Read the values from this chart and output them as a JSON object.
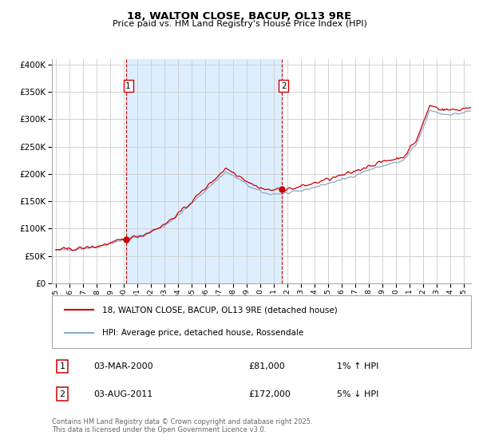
{
  "title": "18, WALTON CLOSE, BACUP, OL13 9RE",
  "subtitle": "Price paid vs. HM Land Registry's House Price Index (HPI)",
  "legend_line1": "18, WALTON CLOSE, BACUP, OL13 9RE (detached house)",
  "legend_line2": "HPI: Average price, detached house, Rossendale",
  "annotation1_label": "1",
  "annotation1_date": "03-MAR-2000",
  "annotation1_price": "£81,000",
  "annotation1_hpi": "1% ↑ HPI",
  "annotation2_label": "2",
  "annotation2_date": "03-AUG-2011",
  "annotation2_price": "£172,000",
  "annotation2_hpi": "5% ↓ HPI",
  "footer": "Contains HM Land Registry data © Crown copyright and database right 2025.\nThis data is licensed under the Open Government Licence v3.0.",
  "line_color_red": "#cc0000",
  "line_color_blue": "#88aacc",
  "shade_color": "#ddeeff",
  "vline_color": "#cc0000",
  "grid_color": "#cccccc",
  "background_color": "#ffffff",
  "ylim": [
    0,
    410000
  ],
  "ytick_vals": [
    0,
    50000,
    100000,
    150000,
    200000,
    250000,
    300000,
    350000,
    400000
  ],
  "transaction1_year": 2000.17,
  "transaction1_value": 81000,
  "transaction2_year": 2011.58,
  "transaction2_value": 172000,
  "start_year": 1995,
  "end_year": 2025.5,
  "anchors_t": [
    1995.0,
    1996.5,
    1998.0,
    2000.0,
    2001.5,
    2003.0,
    2004.5,
    2006.0,
    2007.5,
    2008.5,
    2009.5,
    2010.5,
    2011.5,
    2012.5,
    2013.5,
    2015.0,
    2016.5,
    2018.0,
    2019.5,
    2020.5,
    2021.5,
    2022.5,
    2023.5,
    2024.5,
    2025.5
  ],
  "anchors_v": [
    63000,
    65000,
    69000,
    82000,
    91000,
    109000,
    138000,
    174000,
    208000,
    193000,
    176000,
    166000,
    166000,
    168000,
    174000,
    184000,
    194000,
    208000,
    218000,
    223000,
    253000,
    315000,
    307000,
    307000,
    312000
  ]
}
